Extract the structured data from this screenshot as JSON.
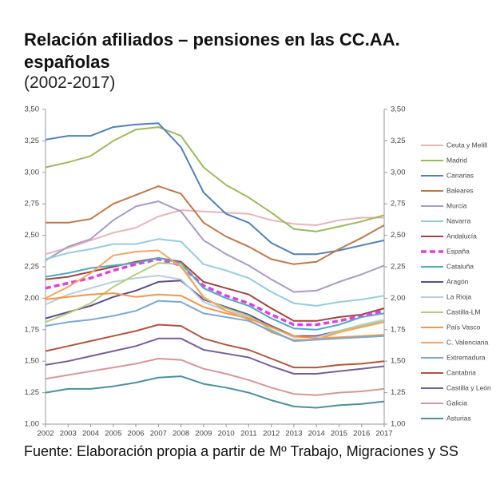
{
  "chart_data": {
    "type": "line",
    "title": "Relación afiliados – pensiones en las CC.AA. españolas",
    "subtitle": "(2002-2017)",
    "source": "Fuente: Elaboración propia a partir de Mº Trabajo, Migraciones y SS",
    "categories": [
      "2002",
      "2003",
      "2004",
      "2005",
      "2006",
      "2007",
      "2008",
      "2009",
      "2010",
      "2011",
      "2012",
      "2013",
      "2014",
      "2015",
      "2016",
      "2017"
    ],
    "ylim": [
      1.0,
      3.5
    ],
    "yticks": [
      {
        "value": 1.0,
        "label": "1,00"
      },
      {
        "value": 1.25,
        "label": "1,25"
      },
      {
        "value": 1.5,
        "label": "1,50"
      },
      {
        "value": 1.75,
        "label": "1,75"
      },
      {
        "value": 2.0,
        "label": "2,00"
      },
      {
        "value": 2.25,
        "label": "2,25"
      },
      {
        "value": 2.5,
        "label": "2,50"
      },
      {
        "value": 2.75,
        "label": "2,75"
      },
      {
        "value": 3.0,
        "label": "3,00"
      },
      {
        "value": 3.25,
        "label": "3,25"
      },
      {
        "value": 3.5,
        "label": "3,50"
      }
    ],
    "y2ticks_mirror": true,
    "series": [
      {
        "name": "Ceuta y Melill",
        "color": "#e8b4b8",
        "values": [
          2.35,
          2.4,
          2.46,
          2.52,
          2.56,
          2.65,
          2.7,
          2.69,
          2.68,
          2.67,
          2.62,
          2.59,
          2.58,
          2.62,
          2.64,
          2.64
        ]
      },
      {
        "name": "Madrid",
        "color": "#9bbb59",
        "values": [
          3.04,
          3.08,
          3.13,
          3.25,
          3.34,
          3.36,
          3.29,
          3.04,
          2.9,
          2.8,
          2.68,
          2.55,
          2.53,
          2.57,
          2.61,
          2.66
        ]
      },
      {
        "name": "Canarias",
        "color": "#4f81bd",
        "values": [
          3.26,
          3.29,
          3.29,
          3.36,
          3.38,
          3.39,
          3.2,
          2.84,
          2.67,
          2.6,
          2.44,
          2.35,
          2.35,
          2.38,
          2.42,
          2.46
        ]
      },
      {
        "name": "Baleares",
        "color": "#c0784a",
        "values": [
          2.6,
          2.6,
          2.63,
          2.75,
          2.82,
          2.89,
          2.83,
          2.6,
          2.49,
          2.41,
          2.31,
          2.27,
          2.29,
          2.39,
          2.48,
          2.58
        ]
      },
      {
        "name": "Murcia",
        "color": "#a99bc4",
        "values": [
          2.3,
          2.41,
          2.47,
          2.62,
          2.73,
          2.77,
          2.69,
          2.46,
          2.35,
          2.26,
          2.15,
          2.05,
          2.06,
          2.13,
          2.19,
          2.26
        ]
      },
      {
        "name": "Navarra",
        "color": "#93cddd",
        "values": [
          2.31,
          2.36,
          2.39,
          2.43,
          2.43,
          2.47,
          2.45,
          2.27,
          2.22,
          2.16,
          2.05,
          1.96,
          1.94,
          1.97,
          1.99,
          2.02
        ]
      },
      {
        "name": "Andalucía",
        "color": "#a0453e",
        "values": [
          2.15,
          2.17,
          2.21,
          2.25,
          2.29,
          2.32,
          2.29,
          2.13,
          2.08,
          2.03,
          1.92,
          1.82,
          1.82,
          1.85,
          1.87,
          1.92
        ]
      },
      {
        "name": "España",
        "color": "#e040e0",
        "dashed": true,
        "values": [
          2.08,
          2.12,
          2.16,
          2.22,
          2.27,
          2.31,
          2.26,
          2.1,
          2.02,
          1.96,
          1.87,
          1.79,
          1.79,
          1.82,
          1.86,
          1.9
        ]
      },
      {
        "name": "Cataluña",
        "color": "#4bacc6",
        "values": [
          2.17,
          2.2,
          2.24,
          2.26,
          2.28,
          2.32,
          2.28,
          2.08,
          2.0,
          1.94,
          1.84,
          1.76,
          1.75,
          1.79,
          1.85,
          1.88
        ]
      },
      {
        "name": "Aragón",
        "color": "#5f4b8b",
        "values": [
          1.84,
          1.89,
          1.94,
          2.01,
          2.06,
          2.13,
          2.14,
          1.99,
          1.93,
          1.87,
          1.78,
          1.7,
          1.7,
          1.74,
          1.78,
          1.82
        ]
      },
      {
        "name": "La Rioja",
        "color": "#b9cde5",
        "values": [
          1.95,
          2.03,
          2.08,
          2.13,
          2.16,
          2.18,
          2.15,
          1.97,
          1.9,
          1.85,
          1.77,
          1.69,
          1.69,
          1.74,
          1.79,
          1.83
        ]
      },
      {
        "name": "Castilla-LM",
        "color": "#b3cf7a",
        "values": [
          1.81,
          1.88,
          1.96,
          2.09,
          2.19,
          2.28,
          2.27,
          2.0,
          1.92,
          1.86,
          1.75,
          1.66,
          1.67,
          1.74,
          1.78,
          1.82
        ]
      },
      {
        "name": "País Vasco",
        "color": "#f79646",
        "values": [
          1.99,
          2.01,
          2.03,
          2.04,
          2.01,
          2.03,
          2.02,
          1.93,
          1.88,
          1.84,
          1.77,
          1.7,
          1.68,
          1.69,
          1.7,
          1.71
        ]
      },
      {
        "name": "C. Valenciana",
        "color": "#f4a460",
        "values": [
          2.0,
          2.09,
          2.2,
          2.34,
          2.37,
          2.38,
          2.25,
          2.01,
          1.9,
          1.83,
          1.73,
          1.67,
          1.67,
          1.73,
          1.77,
          1.81
        ]
      },
      {
        "name": "Extremadura",
        "color": "#7ba7d7",
        "values": [
          1.78,
          1.81,
          1.83,
          1.86,
          1.9,
          1.98,
          1.97,
          1.88,
          1.85,
          1.82,
          1.74,
          1.66,
          1.67,
          1.68,
          1.69,
          1.7
        ]
      },
      {
        "name": "Cantabria",
        "color": "#b5533c",
        "values": [
          1.58,
          1.62,
          1.66,
          1.7,
          1.74,
          1.79,
          1.78,
          1.68,
          1.63,
          1.59,
          1.52,
          1.45,
          1.45,
          1.47,
          1.48,
          1.5
        ]
      },
      {
        "name": "Castilla y León",
        "color": "#7a5c9a",
        "values": [
          1.47,
          1.5,
          1.54,
          1.58,
          1.62,
          1.68,
          1.68,
          1.59,
          1.56,
          1.53,
          1.46,
          1.4,
          1.4,
          1.42,
          1.44,
          1.46
        ]
      },
      {
        "name": "Galicia",
        "color": "#d99694",
        "values": [
          1.36,
          1.39,
          1.42,
          1.45,
          1.48,
          1.52,
          1.51,
          1.44,
          1.4,
          1.35,
          1.29,
          1.24,
          1.23,
          1.25,
          1.26,
          1.28
        ]
      },
      {
        "name": "Asturias",
        "color": "#4a8fa0",
        "values": [
          1.25,
          1.28,
          1.28,
          1.3,
          1.33,
          1.37,
          1.38,
          1.32,
          1.29,
          1.25,
          1.19,
          1.14,
          1.13,
          1.15,
          1.16,
          1.18
        ]
      }
    ]
  }
}
